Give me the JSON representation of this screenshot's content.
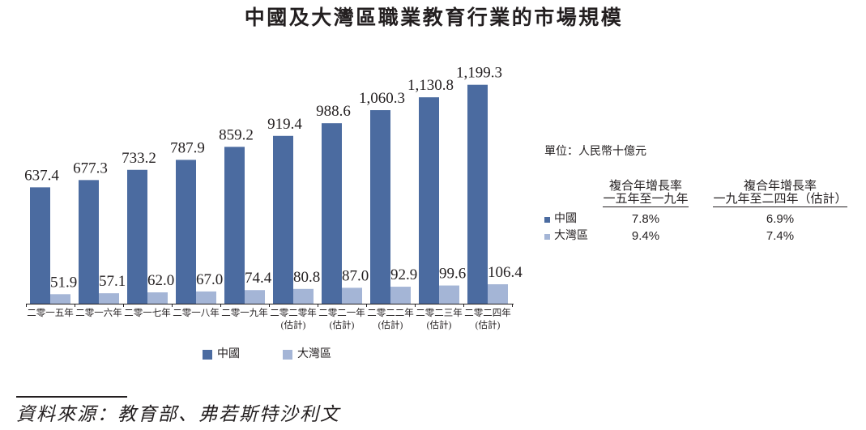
{
  "chart_data": {
    "type": "bar",
    "title": "中國及大灣區職業教育行業的市場規模",
    "categories": [
      "二零一五年",
      "二零一六年",
      "二零一七年",
      "二零一八年",
      "二零一九年",
      "二零二零年\n(估計)",
      "二零二一年\n(估計)",
      "二零二二年\n(估計)",
      "二零二三年\n(估計)",
      "二零二四年\n(估計)"
    ],
    "series": [
      {
        "name": "中國",
        "color": "#4b6ba0",
        "values": [
          637.4,
          677.3,
          733.2,
          787.9,
          859.2,
          919.4,
          988.6,
          1060.3,
          1130.8,
          1199.3
        ]
      },
      {
        "name": "大灣區",
        "color": "#a4b5d6",
        "values": [
          51.9,
          57.1,
          62.0,
          67.0,
          74.4,
          80.8,
          87.0,
          92.9,
          99.6,
          106.4
        ]
      }
    ],
    "ylim": [
      0,
      1300
    ],
    "grid": false,
    "legend": "bottom",
    "data_labels": true
  },
  "cagr_table": {
    "unit": "單位：人民幣十億元",
    "columns": [
      {
        "title": "複合年增長率",
        "period": "一五年至一九年"
      },
      {
        "title": "複合年增長率",
        "period": "一九年至二四年（估計）"
      }
    ],
    "rows": [
      {
        "name": "中國",
        "color": "#4b6ba0",
        "values": [
          "7.8%",
          "6.9%"
        ]
      },
      {
        "name": "大灣區",
        "color": "#a4b5d6",
        "values": [
          "9.4%",
          "7.4%"
        ]
      }
    ]
  },
  "source": "資料來源：教育部、弗若斯特沙利文"
}
